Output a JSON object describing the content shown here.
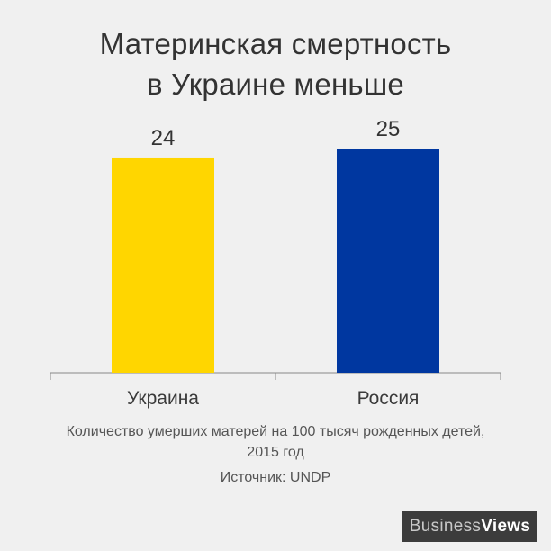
{
  "title_lines": [
    "Материнская смертность",
    "в Украине меньше"
  ],
  "chart_data": {
    "type": "bar",
    "title": "Материнская смертность в Украине меньше",
    "categories": [
      "Украина",
      "Россия"
    ],
    "values": [
      24,
      25
    ],
    "data_labels": [
      "24",
      "25"
    ],
    "colors": [
      "#ffd600",
      "#0037a0"
    ],
    "ylim": [
      0,
      25
    ],
    "xlabel": "",
    "ylabel": "",
    "grid": false,
    "legend": "none"
  },
  "caption_lines": [
    "Количество умерших матерей на 100 тысяч рожденных детей,",
    "2015 год"
  ],
  "source": "Источник: UNDP",
  "logo": {
    "part1": "Business",
    "part2": "Views"
  },
  "colors": {
    "background": "#f0f0f0",
    "axis": "#888888",
    "text": "#333333"
  }
}
